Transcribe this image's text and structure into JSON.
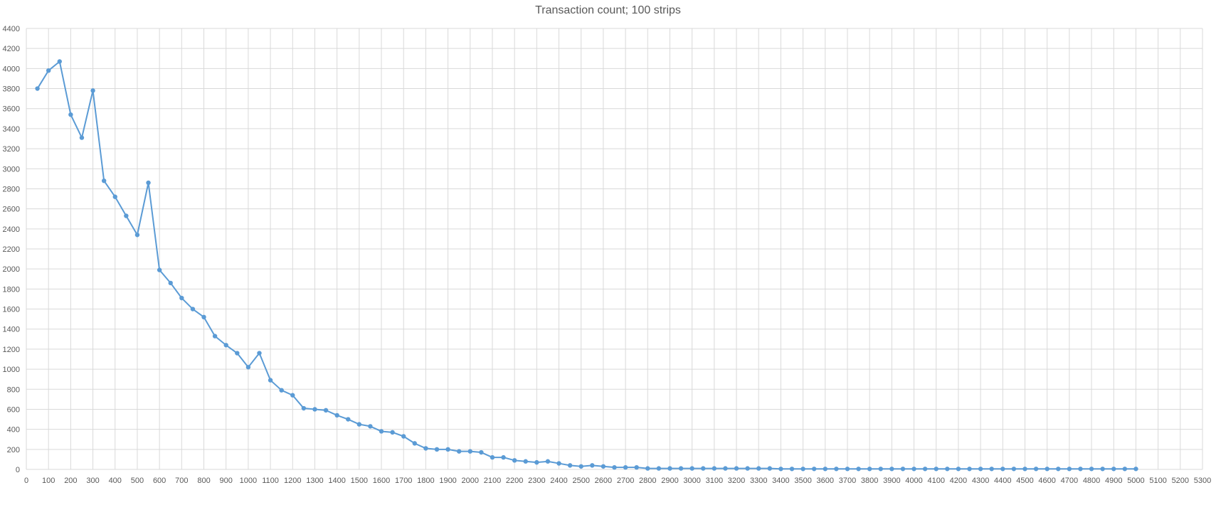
{
  "chart_data": {
    "type": "scatter",
    "title": "Transaction count; 100 strips",
    "xlabel": "",
    "ylabel": "",
    "xlim": [
      0,
      5300
    ],
    "ylim": [
      0,
      4400
    ],
    "x_ticks": [
      0,
      100,
      200,
      300,
      400,
      500,
      600,
      700,
      800,
      900,
      1000,
      1100,
      1200,
      1300,
      1400,
      1500,
      1600,
      1700,
      1800,
      1900,
      2000,
      2100,
      2200,
      2300,
      2400,
      2500,
      2600,
      2700,
      2800,
      2900,
      3000,
      3100,
      3200,
      3300,
      3400,
      3500,
      3600,
      3700,
      3800,
      3900,
      4000,
      4100,
      4200,
      4300,
      4400,
      4500,
      4600,
      4700,
      4800,
      4900,
      5000,
      5100,
      5200,
      5300
    ],
    "y_ticks": [
      0,
      200,
      400,
      600,
      800,
      1000,
      1200,
      1400,
      1600,
      1800,
      2000,
      2200,
      2400,
      2600,
      2800,
      3000,
      3200,
      3400,
      3600,
      3800,
      4000,
      4200,
      4400
    ],
    "grid": true,
    "line_color": "#5B9BD5",
    "grid_color": "#D9D9D9",
    "series": [
      {
        "x": [
          50,
          100,
          150,
          200,
          250,
          300,
          350,
          400,
          450,
          500,
          550,
          600,
          650,
          700,
          750,
          800,
          850,
          900,
          950,
          1000,
          1050,
          1100,
          1150,
          1200,
          1250,
          1300,
          1350,
          1400,
          1450,
          1500,
          1550,
          1600,
          1650,
          1700,
          1750,
          1800,
          1850,
          1900,
          1950,
          2000,
          2050,
          2100,
          2150,
          2200,
          2250,
          2300,
          2350,
          2400,
          2450,
          2500,
          2550,
          2600,
          2650,
          2700,
          2750,
          2800,
          2850,
          2900,
          2950,
          3000,
          3050,
          3100,
          3150,
          3200,
          3250,
          3300,
          3350,
          3400,
          3450,
          3500,
          3550,
          3600,
          3650,
          3700,
          3750,
          3800,
          3850,
          3900,
          3950,
          4000,
          4050,
          4100,
          4150,
          4200,
          4250,
          4300,
          4350,
          4400,
          4450,
          4500,
          4550,
          4600,
          4650,
          4700,
          4750,
          4800,
          4850,
          4900,
          4950,
          5000
        ],
        "y": [
          3800,
          3980,
          4070,
          3540,
          3310,
          3780,
          2880,
          2720,
          2530,
          2340,
          2860,
          1990,
          1860,
          1710,
          1600,
          1520,
          1330,
          1240,
          1160,
          1020,
          1160,
          890,
          790,
          740,
          610,
          600,
          590,
          540,
          500,
          450,
          430,
          380,
          370,
          330,
          260,
          210,
          200,
          200,
          180,
          180,
          170,
          120,
          120,
          90,
          80,
          70,
          80,
          60,
          40,
          30,
          40,
          30,
          20,
          20,
          20,
          10,
          10,
          10,
          10,
          10,
          10,
          10,
          10,
          10,
          10,
          10,
          10,
          5,
          5,
          5,
          5,
          5,
          5,
          5,
          5,
          5,
          5,
          5,
          5,
          5,
          5,
          5,
          5,
          5,
          5,
          5,
          5,
          5,
          5,
          5,
          5,
          5,
          5,
          5,
          5,
          5,
          5,
          5,
          5,
          5
        ]
      }
    ]
  }
}
